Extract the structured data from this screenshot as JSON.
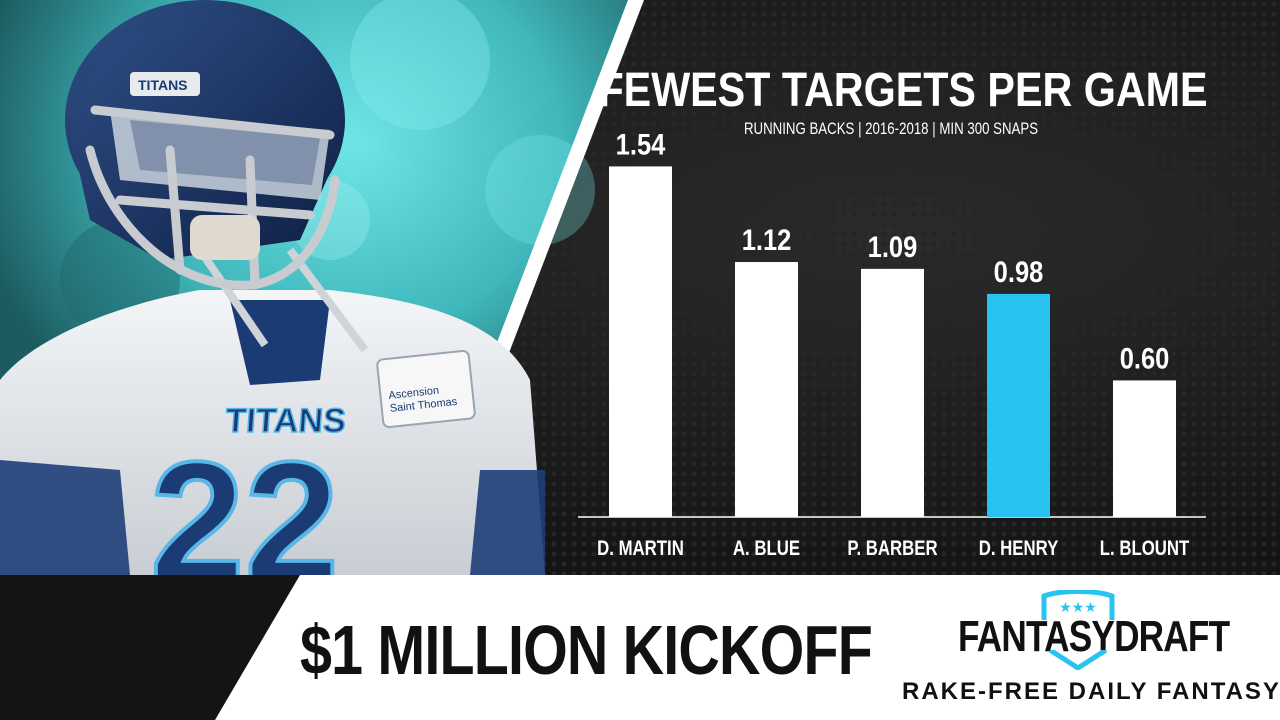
{
  "chart_data": {
    "type": "bar",
    "title": "FEWEST TARGETS PER GAME",
    "subtitle": "RUNNING BACKS | 2016-2018 | MIN 300 SNAPS",
    "categories": [
      "D. MARTIN",
      "A. BLUE",
      "P. BARBER",
      "D. HENRY",
      "L. BLOUNT"
    ],
    "values": [
      1.54,
      1.12,
      1.09,
      0.98,
      0.6
    ],
    "value_labels": [
      "1.54",
      "1.12",
      "1.09",
      "0.98",
      "0.60"
    ],
    "highlight_index": 3,
    "colors": {
      "bar": "#ffffff",
      "highlight": "#29c3f2",
      "text": "#ffffff",
      "accent": "#58d8e0"
    },
    "xlabel": "",
    "ylabel": "",
    "ylim": [
      0,
      1.7
    ],
    "grid": false
  },
  "promo": {
    "text": "$1 MILLION KICKOFF"
  },
  "brand": {
    "name": "FANTASYDRAFT",
    "stars": "★★★",
    "tagline": "RAKE-FREE DAILY FANTASY"
  }
}
